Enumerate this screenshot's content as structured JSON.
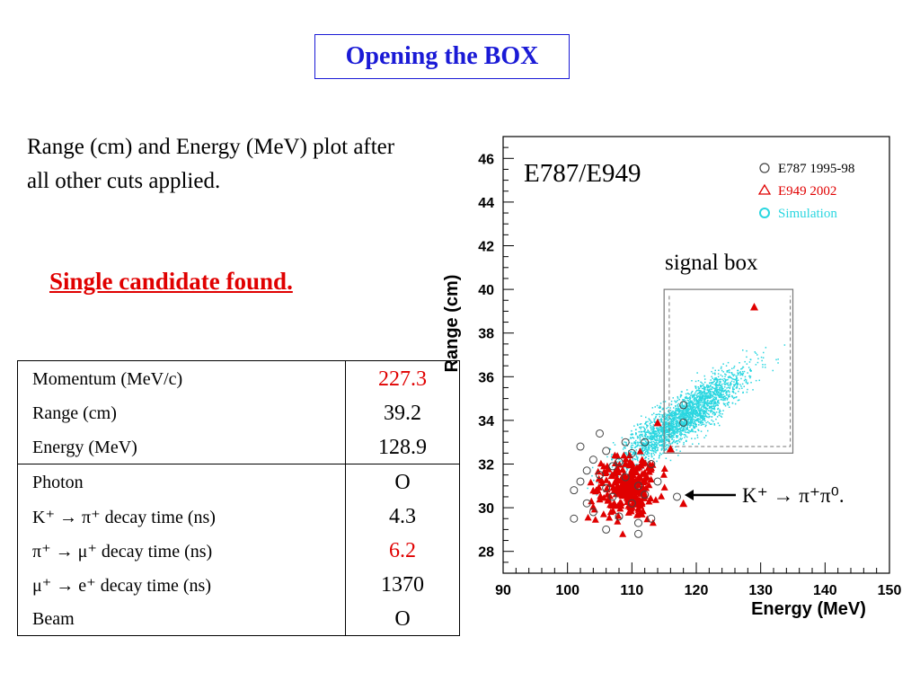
{
  "title": "Opening the BOX",
  "description": "Range (cm) and Energy (MeV) plot after all other cuts applied.",
  "finding": "Single candidate found.",
  "candidate_table": {
    "rows": [
      {
        "label": "Momentum (MeV/c)",
        "value": "227.3",
        "color": "#e00000"
      },
      {
        "label": "Range (cm)",
        "value": "39.2",
        "color": "#000000"
      },
      {
        "label": "Energy (MeV)",
        "value": "128.9",
        "color": "#000000"
      },
      {
        "label": "Photon",
        "value": "O",
        "color": "#000000"
      },
      {
        "label": "K⁺ → π⁺ decay time (ns)",
        "value": "4.3",
        "color": "#000000"
      },
      {
        "label": "π⁺ → μ⁺ decay time (ns)",
        "value": "6.2",
        "color": "#e00000"
      },
      {
        "label": "μ⁺ → e⁺ decay time (ns)",
        "value": "1370",
        "color": "#000000"
      },
      {
        "label": "Beam",
        "value": "O",
        "color": "#000000"
      }
    ]
  },
  "chart_data": {
    "type": "scatter",
    "title": "E787/E949",
    "xlabel": "Energy (MeV)",
    "ylabel": "Range (cm)",
    "xlim": [
      90,
      150
    ],
    "ylim": [
      27,
      47
    ],
    "xticks": [
      90,
      100,
      110,
      120,
      130,
      140,
      150
    ],
    "yticks": [
      28,
      30,
      32,
      34,
      36,
      38,
      40,
      42,
      44,
      46
    ],
    "grid": false,
    "legend_position": "top-right",
    "series": [
      {
        "name": "E787 1995-98",
        "marker": "open-circle",
        "color": "#444444",
        "points": [
          [
            101,
            30.8
          ],
          [
            101,
            29.5
          ],
          [
            102,
            32.8
          ],
          [
            102,
            31.2
          ],
          [
            103,
            30.2
          ],
          [
            104,
            32.2
          ],
          [
            104,
            29.8
          ],
          [
            105,
            33.4
          ],
          [
            105,
            31.5
          ],
          [
            106,
            32.6
          ],
          [
            106,
            29.0
          ],
          [
            107,
            31.9
          ],
          [
            107,
            30.5
          ],
          [
            108,
            32.1
          ],
          [
            108,
            29.6
          ],
          [
            109,
            33.0
          ],
          [
            109,
            31.4
          ],
          [
            110,
            30.2
          ],
          [
            110,
            32.5
          ],
          [
            111,
            29.3
          ],
          [
            111,
            31.0
          ],
          [
            112,
            33.0
          ],
          [
            112,
            30.6
          ],
          [
            113,
            29.5
          ],
          [
            113,
            32.0
          ],
          [
            114,
            31.2
          ],
          [
            117,
            30.5
          ],
          [
            118,
            33.9
          ],
          [
            118,
            34.7
          ],
          [
            111,
            28.8
          ],
          [
            103,
            31.7
          ],
          [
            106,
            30.9
          ]
        ]
      },
      {
        "name": "E949 2002",
        "marker": "open-triangle",
        "color": "#e00000",
        "points": [
          [
            114,
            33.9
          ],
          [
            116,
            32.7
          ],
          [
            118,
            30.2
          ],
          [
            129,
            39.2
          ]
        ]
      },
      {
        "name": "Simulation",
        "marker": "dot",
        "color": "#2ad6e0",
        "points": []
      }
    ],
    "signal_box_label": "signal box",
    "annotation": "K⁺ → π⁺π⁰."
  }
}
